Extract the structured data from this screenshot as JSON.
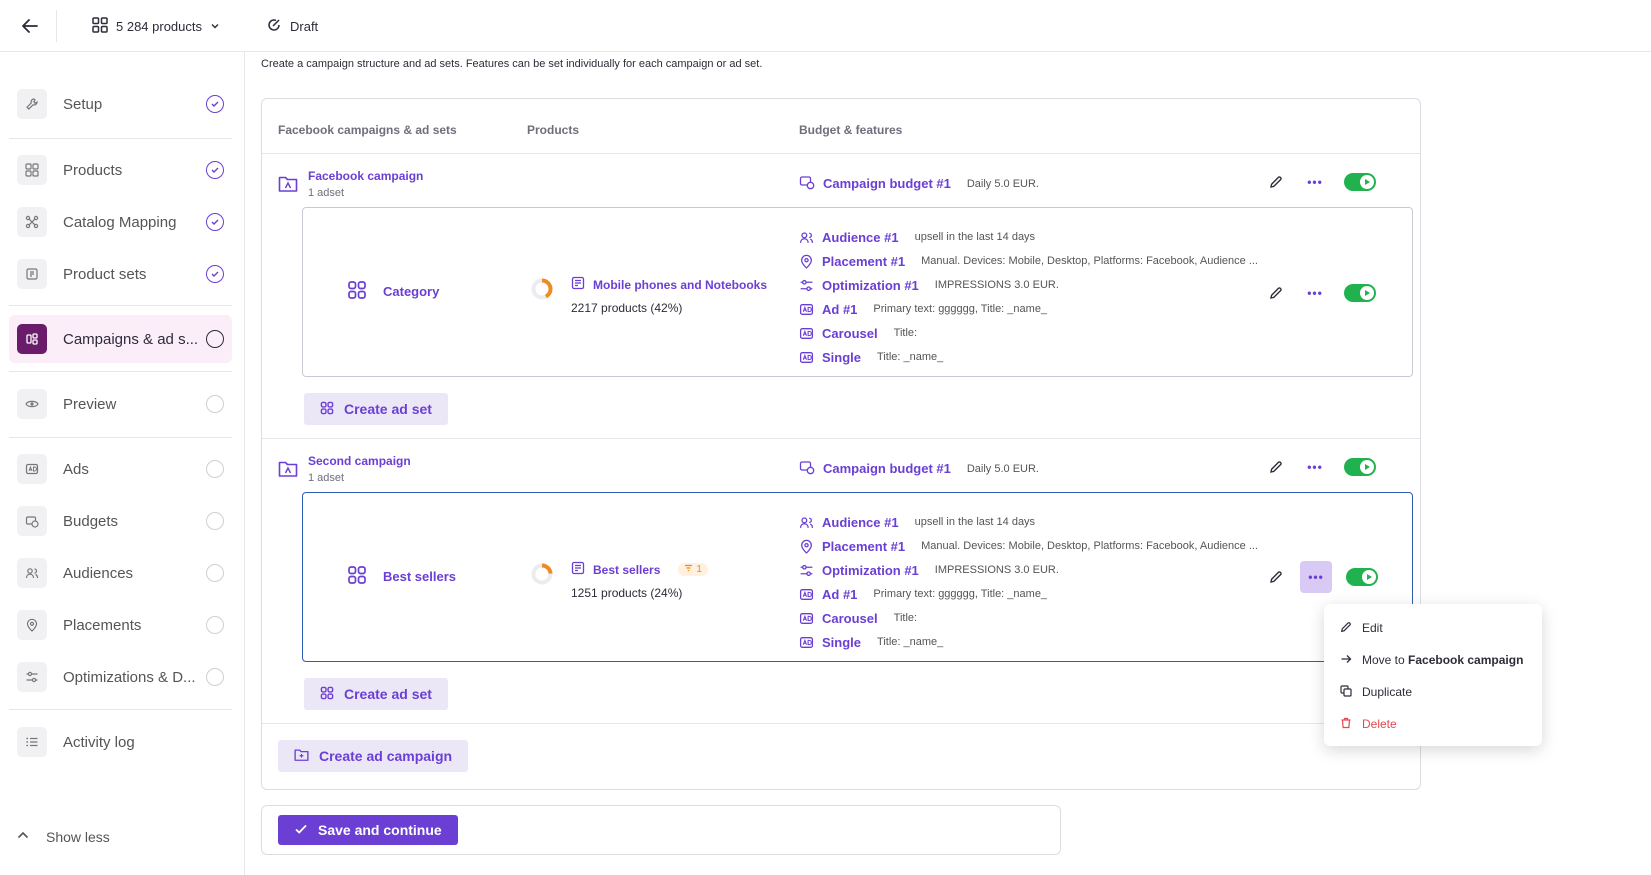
{
  "topbar": {
    "products_label": "5 284 products",
    "status_label": "Draft"
  },
  "sidebar": {
    "items": [
      {
        "label": "Setup",
        "status": "done"
      },
      {
        "label": "Products",
        "status": "done"
      },
      {
        "label": "Catalog Mapping",
        "status": "done"
      },
      {
        "label": "Product sets",
        "status": "done"
      },
      {
        "label": "Campaigns & ad s...",
        "status": "active"
      },
      {
        "label": "Preview",
        "status": "todo"
      },
      {
        "label": "Ads",
        "status": "todo"
      },
      {
        "label": "Budgets",
        "status": "todo"
      },
      {
        "label": "Audiences",
        "status": "todo"
      },
      {
        "label": "Placements",
        "status": "todo"
      },
      {
        "label": "Optimizations & D...",
        "status": "todo"
      },
      {
        "label": "Activity log",
        "status": "none"
      }
    ],
    "show_less": "Show less"
  },
  "intro": "Create a campaign structure and ad sets. Features can be set individually for each campaign or ad set.",
  "table": {
    "headers": [
      "Facebook campaigns & ad sets",
      "Products",
      "Budget & features"
    ]
  },
  "campaigns": [
    {
      "name": "Facebook campaign",
      "adsets_count": "1 adset",
      "budget_label": "Campaign budget #1",
      "budget_value": "Daily 5.0 EUR.",
      "adset": {
        "name": "Category",
        "product_set": "Mobile phones and Notebooks",
        "product_count": "2217 products (42%)",
        "share": 0.42,
        "features": [
          {
            "label": "Audience #1",
            "value": "upsell in the last 14 days"
          },
          {
            "label": "Placement #1",
            "value": "Manual. Devices: Mobile, Desktop, Platforms: Facebook, Audience ..."
          },
          {
            "label": "Optimization #1",
            "value": "IMPRESSIONS 3.0 EUR."
          },
          {
            "label": "Ad #1",
            "value": "Primary text: gggggg, Title: _name_"
          },
          {
            "label": "Carousel",
            "value": "Title:"
          },
          {
            "label": "Single",
            "value": "Title: _name_"
          }
        ]
      },
      "create_adset": "Create ad set"
    },
    {
      "name": "Second campaign",
      "adsets_count": "1 adset",
      "budget_label": "Campaign budget #1",
      "budget_value": "Daily 5.0 EUR.",
      "adset": {
        "name": "Best sellers",
        "product_set": "Best sellers",
        "filter_badge": "1",
        "product_count": "1251 products (24%)",
        "share": 0.24,
        "features": [
          {
            "label": "Audience #1",
            "value": "upsell in the last 14 days"
          },
          {
            "label": "Placement #1",
            "value": "Manual. Devices: Mobile, Desktop, Platforms: Facebook, Audience ..."
          },
          {
            "label": "Optimization #1",
            "value": "IMPRESSIONS 3.0 EUR."
          },
          {
            "label": "Ad #1",
            "value": "Primary text: gggggg, Title: _name_"
          },
          {
            "label": "Carousel",
            "value": "Title:"
          },
          {
            "label": "Single",
            "value": "Title: _name_"
          }
        ]
      },
      "create_adset": "Create ad set"
    }
  ],
  "create_campaign": "Create ad campaign",
  "save_label": "Save and continue",
  "context_menu": {
    "edit": "Edit",
    "move_prefix": "Move to",
    "move_target": "Facebook campaign",
    "duplicate": "Duplicate",
    "delete": "Delete"
  },
  "colors": {
    "accent": "#6b3fd4",
    "active_nav": "#6a1c6b",
    "toggle_on": "#20b24e",
    "delete": "#e5484d",
    "donut": "#ef8b25"
  }
}
